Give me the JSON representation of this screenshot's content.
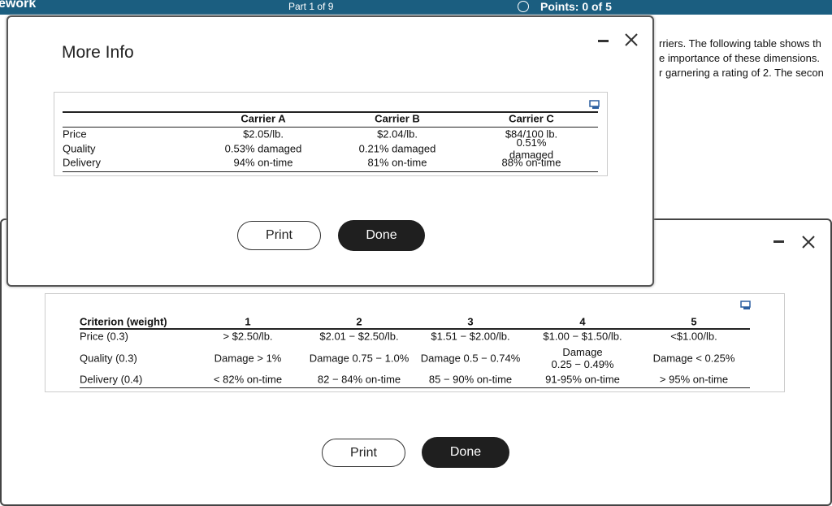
{
  "header": {
    "section": "ework",
    "part": "Part 1 of 9",
    "points": "Points: 0 of 5"
  },
  "background_text": [
    "rriers. The following table shows th",
    "e importance of these dimensions.",
    "r garnering a rating of 2. The secon"
  ],
  "more_info": {
    "title": "More Info",
    "columns": [
      "Carrier A",
      "Carrier B",
      "Carrier C"
    ],
    "rows": [
      [
        "Price",
        "$2.05/lb.",
        "$2.04/lb.",
        "$84/100 lb."
      ],
      [
        "Quality",
        "0.53% damaged",
        "0.21% damaged",
        "0.51% damaged"
      ],
      [
        "Delivery",
        "94% on-time",
        "81% on-time",
        "88% on-time"
      ]
    ],
    "buttons": [
      "Print",
      "Done"
    ]
  },
  "criteria": {
    "columns": [
      "Criterion (weight)",
      "1",
      "2",
      "3",
      "4",
      "5"
    ],
    "rows": [
      [
        "Price (0.3)",
        "> $2.50/lb.",
        "$2.01 − $2.50/lb.",
        "$1.51 − $2.00/lb.",
        "$1.00 − $1.50/lb.",
        "<$1.00/lb."
      ],
      [
        "Quality (0.3)",
        "Damage > 1%",
        "Damage 0.75 − 1.0%",
        "Damage 0.5 − 0.74%",
        "Damage\n0.25 − 0.49%",
        "Damage < 0.25%"
      ],
      [
        "Delivery (0.4)",
        "< 82% on-time",
        "82 − 84% on-time",
        "85 − 90% on-time",
        "91-95% on-time",
        "> 95% on-time"
      ]
    ],
    "buttons": [
      "Print",
      "Done"
    ]
  }
}
